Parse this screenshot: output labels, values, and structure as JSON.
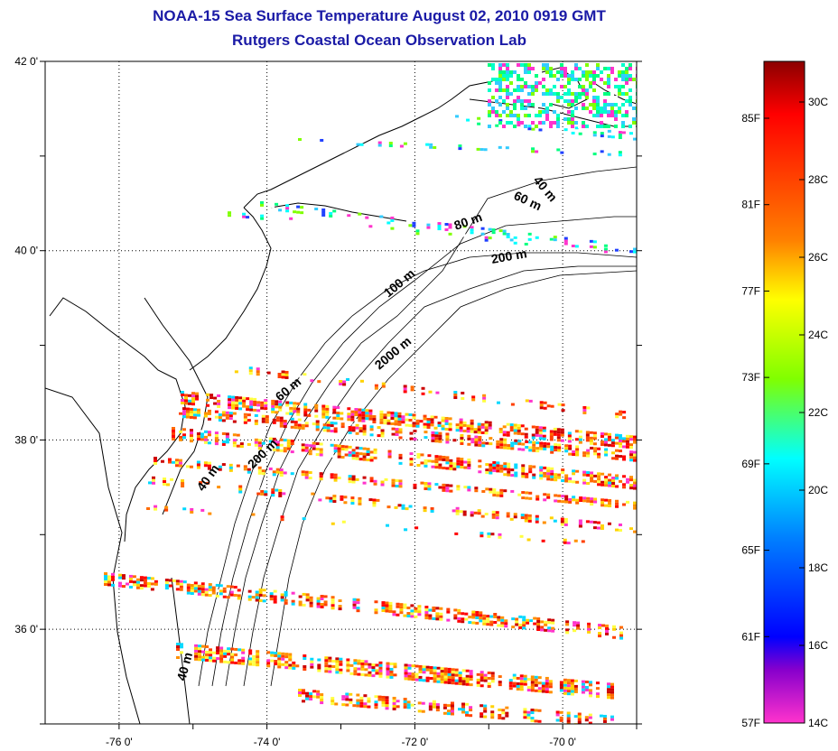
{
  "title": {
    "line1": "NOAA-15 Sea Surface Temperature August 02, 2010 0919 GMT",
    "line2": "Rutgers Coastal Ocean Observation Lab"
  },
  "map": {
    "lon_range": [
      -77,
      -69
    ],
    "lat_range": [
      35,
      42
    ],
    "lon_ticks": [
      {
        "lon": -76,
        "label": "-76 0'"
      },
      {
        "lon": -74,
        "label": "-74 0'"
      },
      {
        "lon": -72,
        "label": "-72 0'"
      },
      {
        "lon": -70,
        "label": "-70 0'"
      }
    ],
    "lat_ticks": [
      {
        "lat": 42,
        "label": "42 0'"
      },
      {
        "lat": 40,
        "label": "40 0'"
      },
      {
        "lat": 38,
        "label": "38 0'"
      },
      {
        "lat": 36,
        "label": "36 0'"
      }
    ],
    "grid": true,
    "land_color": "#ffffff",
    "coast_color": "#000000",
    "depth_contour_labels": [
      "40 m",
      "60 m",
      "80 m",
      "200 m",
      "100 m",
      "2000 m",
      "60 m",
      "200 m",
      "40 m",
      "40 m"
    ]
  },
  "colorbar": {
    "colors_top_to_bottom": [
      "#8b0000",
      "#ff0000",
      "#ff7f00",
      "#ffff00",
      "#7fff00",
      "#00ffff",
      "#007fff",
      "#0000ff",
      "#8800cc",
      "#ff33cc"
    ],
    "fahrenheit_labels": [
      "85F",
      "81F",
      "77F",
      "73F",
      "69F",
      "65F",
      "61F",
      "57F"
    ],
    "celsius_labels": [
      "30C",
      "28C",
      "26C",
      "24C",
      "22C",
      "20C",
      "18C",
      "16C",
      "14C"
    ]
  }
}
